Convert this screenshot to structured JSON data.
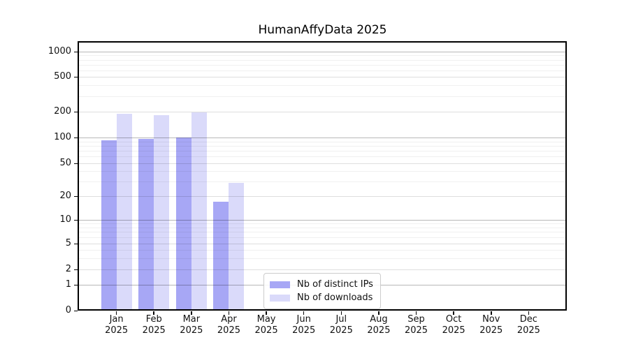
{
  "title": "HumanAffyData 2025",
  "chart_data": {
    "type": "bar",
    "title": "HumanAffyData 2025",
    "categories": [
      "Jan",
      "Feb",
      "Mar",
      "Apr",
      "May",
      "Jun",
      "Jul",
      "Aug",
      "Sep",
      "Oct",
      "Nov",
      "Dec"
    ],
    "category_year": "2025",
    "series": [
      {
        "name": "Nb of distinct IPs",
        "color": "#a7a7f5",
        "values": [
          93,
          96,
          100,
          17,
          0,
          0,
          0,
          0,
          0,
          0,
          0,
          0
        ]
      },
      {
        "name": "Nb of downloads",
        "color": "#dadafa",
        "values": [
          190,
          183,
          196,
          29,
          0,
          0,
          0,
          0,
          0,
          0,
          0,
          0
        ]
      }
    ],
    "yscale": "symlog",
    "yticks": [
      0,
      1,
      2,
      5,
      10,
      20,
      50,
      100,
      200,
      500,
      1000
    ],
    "minor_gridlines": [
      3,
      4,
      6,
      7,
      8,
      9,
      30,
      40,
      60,
      70,
      80,
      90,
      300,
      400,
      600,
      700,
      800,
      900
    ],
    "ylim": [
      0,
      1400
    ],
    "xlabel": "",
    "ylabel": "",
    "grid": true,
    "legend_position": "lower center"
  }
}
